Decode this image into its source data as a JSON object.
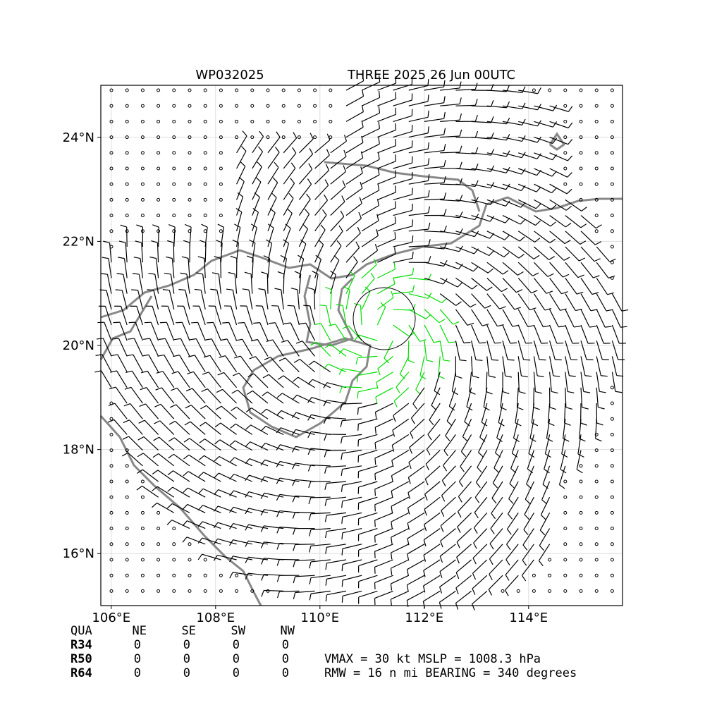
{
  "map": {
    "title_left": "WP032025",
    "title_right": "THREE 2025 26 Jun 00UTC",
    "xlim": [
      105.8,
      115.8
    ],
    "ylim": [
      15,
      25
    ],
    "xticks": [
      {
        "value": 106,
        "label": "106°E"
      },
      {
        "value": 108,
        "label": "108°E"
      },
      {
        "value": 110,
        "label": "110°E"
      },
      {
        "value": 112,
        "label": "112°E"
      },
      {
        "value": 114,
        "label": "114°E"
      }
    ],
    "yticks": [
      {
        "value": 16,
        "label": "16°N"
      },
      {
        "value": 18,
        "label": "18°N"
      },
      {
        "value": 20,
        "label": "20°N"
      },
      {
        "value": 22,
        "label": "22°N"
      },
      {
        "value": 24,
        "label": "24°N"
      }
    ]
  },
  "table": {
    "header": [
      "QUA",
      "NE",
      "SE",
      "SW",
      "NW"
    ],
    "rows": [
      [
        "R34",
        0,
        0,
        0,
        0
      ],
      [
        "R50",
        0,
        0,
        0,
        0
      ],
      [
        "R64",
        0,
        0,
        0,
        0
      ]
    ]
  },
  "info": [
    "VMAX =  30 kt MSLP = 1008.3 hPa",
    "RMW =  16 n mi BEARING = 340 degrees"
  ]
}
